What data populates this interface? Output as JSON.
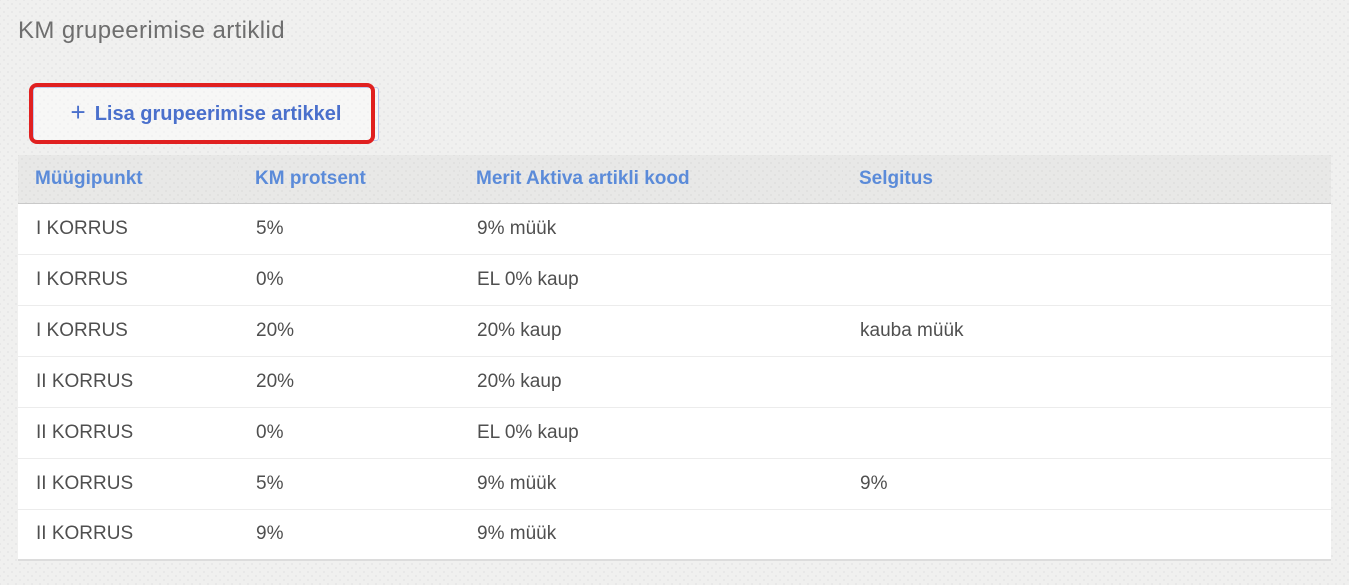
{
  "title": "KM grupeerimise artiklid",
  "add_button": {
    "icon": "+",
    "label": "Lisa grupeerimise artikkel"
  },
  "annotation": {
    "type": "highlight-box",
    "color": "#e02020"
  },
  "table": {
    "columns": [
      "Müügipunkt",
      "KM protsent",
      "Merit Aktiva artikli kood",
      "Selgitus"
    ],
    "rows": [
      [
        "I KORRUS",
        "5%",
        "9% müük",
        ""
      ],
      [
        "I KORRUS",
        "0%",
        "EL 0% kaup",
        ""
      ],
      [
        "I KORRUS",
        "20%",
        "20% kaup",
        "kauba müük"
      ],
      [
        "II KORRUS",
        "20%",
        "20% kaup",
        ""
      ],
      [
        "II KORRUS",
        "0%",
        "EL 0% kaup",
        ""
      ],
      [
        "II KORRUS",
        "5%",
        "9% müük",
        "9%"
      ],
      [
        "II KORRUS",
        "9%",
        "9% müük",
        ""
      ]
    ]
  },
  "colors": {
    "page_background": "#f0f0ef",
    "header_background": "#e8e8e7",
    "link_blue": "#5b8bd9",
    "button_blue": "#4a70cc",
    "annotation_red": "#e02020",
    "body_text": "#4f4f4f",
    "title_text": "#6e6e6e"
  }
}
